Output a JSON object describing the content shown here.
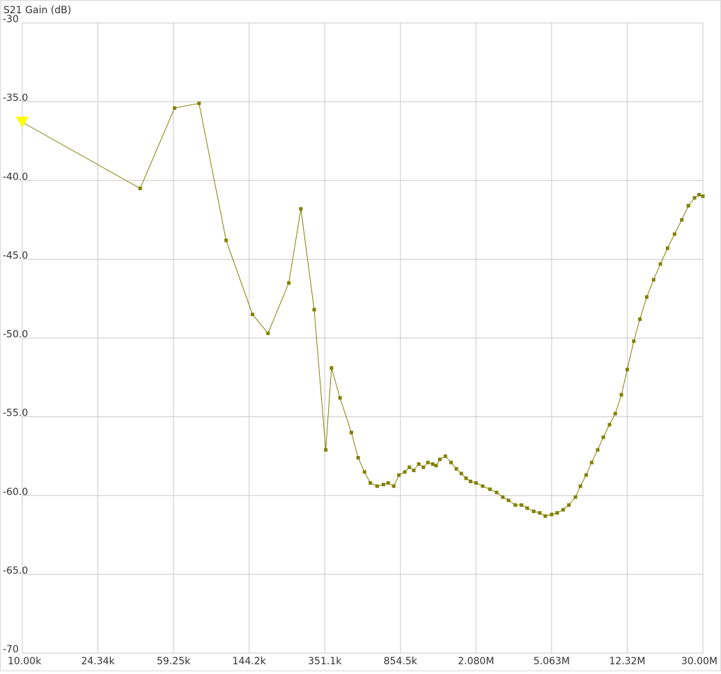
{
  "chart_data": {
    "type": "line",
    "title": "S21 Gain (dB)",
    "xlabel": "",
    "ylabel": "S21 Gain (dB)",
    "x_scale": "log",
    "xlim": [
      10000,
      30000000
    ],
    "ylim": [
      -70,
      -30
    ],
    "grid": true,
    "x_tick_values": [
      10000,
      24340,
      59250,
      144200,
      351100,
      854500,
      2080000,
      5063000,
      12320000,
      30000000
    ],
    "x_tick_labels": [
      "10.00k",
      "24.34k",
      "59.25k",
      "144.2k",
      "351.1k",
      "854.5k",
      "2.080M",
      "5.063M",
      "12.32M",
      "30.00M"
    ],
    "y_tick_values": [
      -30,
      -35,
      -40,
      -45,
      -50,
      -55,
      -60,
      -65,
      -70
    ],
    "y_tick_labels": [
      "-30",
      "-35.0",
      "-40.0",
      "-45.0",
      "-50.0",
      "-55.0",
      "-60.0",
      "-65.0",
      "-70"
    ],
    "marker": {
      "x": 10000,
      "y": -36.3,
      "color": "#ffff00"
    },
    "series": [
      {
        "color": "#808000",
        "x": [
          10000,
          40000,
          60000,
          80000,
          110000,
          150000,
          180000,
          230000,
          265000,
          310000,
          355000,
          380000,
          420000,
          480000,
          520000,
          560000,
          600000,
          650000,
          700000,
          740000,
          790000,
          840000,
          900000,
          950000,
          1000000,
          1060000,
          1120000,
          1180000,
          1250000,
          1300000,
          1360000,
          1450000,
          1550000,
          1650000,
          1750000,
          1850000,
          1950000,
          2080000,
          2250000,
          2450000,
          2650000,
          2850000,
          3050000,
          3300000,
          3550000,
          3800000,
          4100000,
          4400000,
          4700000,
          5063000,
          5400000,
          5800000,
          6200000,
          6700000,
          7100000,
          7600000,
          8100000,
          8700000,
          9300000,
          10000000,
          10700000,
          11500000,
          12320000,
          13300000,
          14300000,
          15500000,
          16800000,
          18200000,
          19800000,
          21500000,
          23400000,
          25300000,
          27200000,
          28700000,
          30000000
        ],
        "y": [
          -36.3,
          -40.5,
          -35.4,
          -35.1,
          -43.8,
          -48.5,
          -49.7,
          -46.5,
          -41.8,
          -48.2,
          -57.1,
          -51.9,
          -53.8,
          -56.0,
          -57.6,
          -58.5,
          -59.2,
          -59.4,
          -59.3,
          -59.2,
          -59.4,
          -58.7,
          -58.5,
          -58.2,
          -58.4,
          -58.0,
          -58.2,
          -57.9,
          -58.0,
          -58.1,
          -57.7,
          -57.5,
          -57.9,
          -58.3,
          -58.6,
          -58.9,
          -59.1,
          -59.2,
          -59.4,
          -59.6,
          -59.8,
          -60.1,
          -60.3,
          -60.6,
          -60.6,
          -60.8,
          -61.0,
          -61.1,
          -61.3,
          -61.2,
          -61.1,
          -60.9,
          -60.6,
          -60.1,
          -59.4,
          -58.7,
          -57.9,
          -57.1,
          -56.3,
          -55.5,
          -54.8,
          -53.6,
          -52.0,
          -50.2,
          -48.8,
          -47.4,
          -46.3,
          -45.3,
          -44.3,
          -43.4,
          -42.5,
          -41.6,
          -41.1,
          -40.9,
          -41.0
        ]
      }
    ]
  }
}
